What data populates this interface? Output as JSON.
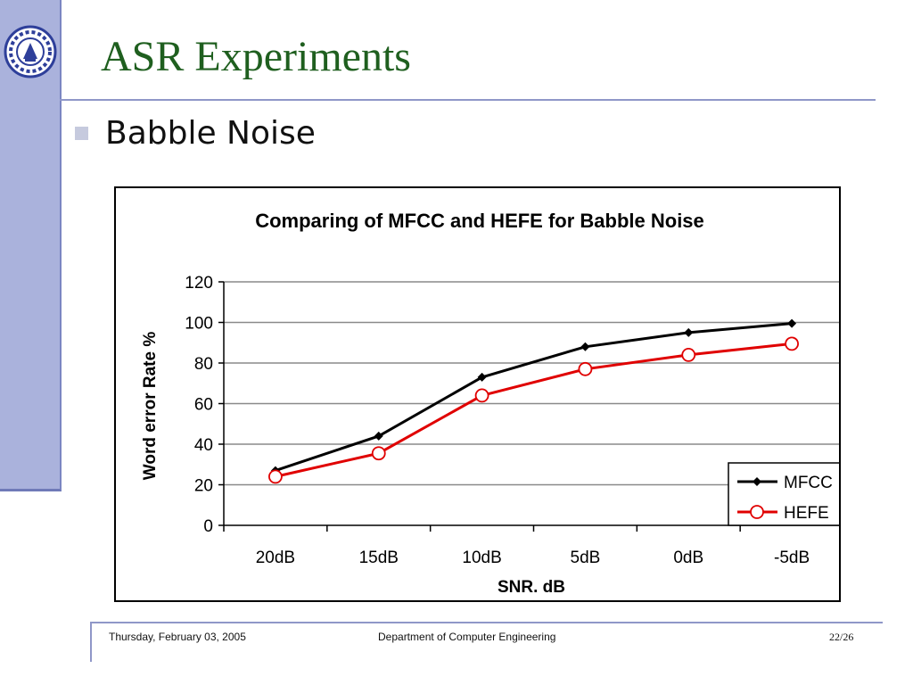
{
  "slide": {
    "title": "ASR Experiments",
    "bullet": "Babble Noise"
  },
  "footer": {
    "date": "Thursday, February 03, 2005",
    "department": "Department of Computer Engineering",
    "page": "22/26"
  },
  "colors": {
    "title": "#1f5f1f",
    "sidebar": "#aab2dc",
    "mfcc": "#000000",
    "hefe": "#e00000"
  },
  "chart_data": {
    "type": "line",
    "title": "Comparing of MFCC and HEFE for Babble Noise",
    "xlabel": "SNR. dB",
    "ylabel": "Word error Rate %",
    "categories": [
      "20dB",
      "15dB",
      "10dB",
      "5dB",
      "0dB",
      "-5dB"
    ],
    "ylim": [
      0,
      120
    ],
    "yticks": [
      0,
      20,
      40,
      60,
      80,
      100,
      120
    ],
    "grid": true,
    "legend": "bottom-right",
    "series": [
      {
        "name": "MFCC",
        "values": [
          27,
          44,
          73,
          88,
          95,
          99.5
        ],
        "marker": "diamond"
      },
      {
        "name": "HEFE",
        "values": [
          24,
          35.5,
          64,
          77,
          84,
          89.5
        ],
        "marker": "circle"
      }
    ]
  }
}
